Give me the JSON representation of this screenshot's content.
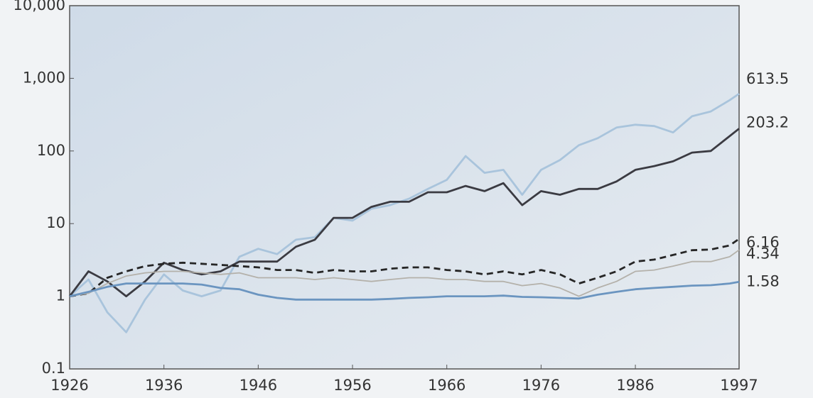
{
  "chart_data": {
    "type": "line",
    "log_scale": true,
    "grid": false,
    "x": [
      1926,
      1928,
      1930,
      1932,
      1934,
      1936,
      1938,
      1940,
      1942,
      1944,
      1946,
      1948,
      1950,
      1952,
      1954,
      1956,
      1958,
      1960,
      1962,
      1964,
      1966,
      1968,
      1970,
      1972,
      1974,
      1976,
      1978,
      1980,
      1982,
      1984,
      1986,
      1988,
      1990,
      1992,
      1994,
      1996,
      1997
    ],
    "xlim": [
      1926,
      1997
    ],
    "xticks": [
      1926,
      1936,
      1946,
      1956,
      1966,
      1976,
      1986,
      1997
    ],
    "ylim": [
      0.1,
      10000
    ],
    "yticks": [
      0.1,
      1,
      10,
      100,
      {
        "value": 1000,
        "label": "1,000"
      },
      {
        "value": 10000,
        "label": "10,000"
      }
    ],
    "series": [
      {
        "color": "#a9c4dc",
        "style": "solid",
        "values": [
          1,
          1.7,
          0.6,
          0.32,
          0.9,
          2.0,
          1.2,
          1.0,
          1.2,
          3.5,
          4.5,
          3.8,
          6.0,
          6.5,
          12,
          11,
          16,
          18,
          22,
          30,
          40,
          85,
          50,
          55,
          25,
          55,
          75,
          120,
          150,
          210,
          230,
          220,
          180,
          300,
          350,
          500,
          613.5
        ]
      },
      {
        "color": "#3b3b42",
        "style": "solid",
        "values": [
          1,
          2.2,
          1.6,
          1.0,
          1.6,
          2.9,
          2.3,
          2.0,
          2.2,
          3.0,
          3.0,
          3.0,
          4.8,
          6.0,
          12,
          12,
          17,
          20,
          20,
          27,
          27,
          33,
          28,
          36,
          18,
          28,
          25,
          30,
          30,
          38,
          55,
          62,
          72,
          95,
          100,
          160,
          203.2
        ]
      },
      {
        "color": "#262626",
        "style": "dashed",
        "values": [
          1,
          1.1,
          1.8,
          2.2,
          2.6,
          2.8,
          2.9,
          2.8,
          2.7,
          2.6,
          2.5,
          2.3,
          2.3,
          2.1,
          2.3,
          2.2,
          2.2,
          2.4,
          2.5,
          2.5,
          2.3,
          2.2,
          2.0,
          2.2,
          2.0,
          2.3,
          2.0,
          1.5,
          1.8,
          2.2,
          3.0,
          3.2,
          3.7,
          4.3,
          4.4,
          5.0,
          6.16
        ]
      },
      {
        "color": "#b4b1aa",
        "style": "solid",
        "values": [
          1,
          1.1,
          1.5,
          1.9,
          2.1,
          2.2,
          2.2,
          2.1,
          2.0,
          2.1,
          1.8,
          1.8,
          1.8,
          1.7,
          1.8,
          1.7,
          1.6,
          1.7,
          1.8,
          1.8,
          1.7,
          1.7,
          1.6,
          1.6,
          1.4,
          1.5,
          1.3,
          1.0,
          1.3,
          1.6,
          2.2,
          2.3,
          2.6,
          3.0,
          3.0,
          3.5,
          4.34
        ]
      },
      {
        "color": "#6b95c0",
        "style": "solid",
        "values": [
          1,
          1.15,
          1.35,
          1.5,
          1.5,
          1.5,
          1.5,
          1.45,
          1.3,
          1.25,
          1.05,
          0.95,
          0.9,
          0.9,
          0.9,
          0.9,
          0.9,
          0.92,
          0.95,
          0.97,
          1.0,
          1.0,
          1.0,
          1.02,
          0.98,
          0.97,
          0.95,
          0.93,
          1.05,
          1.15,
          1.25,
          1.3,
          1.35,
          1.4,
          1.42,
          1.5,
          1.58
        ]
      }
    ]
  }
}
